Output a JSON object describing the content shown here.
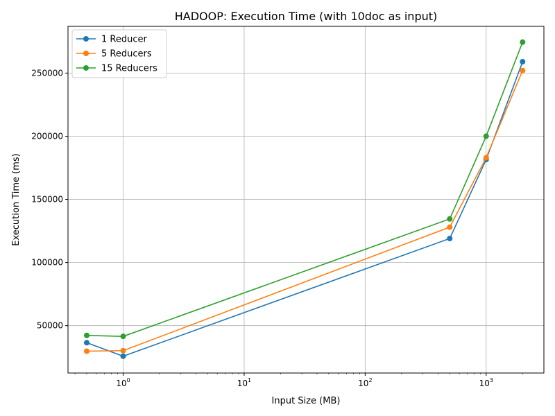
{
  "chart_data": {
    "type": "line",
    "title": "HADOOP: Execution Time (with 10doc as input)",
    "xlabel": "Input Size (MB)",
    "ylabel": "Execution Time (ms)",
    "xscale": "log",
    "xlim": [
      0.35,
      3000
    ],
    "ylim": [
      12500,
      287000
    ],
    "x": [
      0.5,
      1,
      500,
      1000,
      2000
    ],
    "x_ticks": [
      {
        "value": 1,
        "base": "10",
        "exp": "0"
      },
      {
        "value": 10,
        "base": "10",
        "exp": "1"
      },
      {
        "value": 100,
        "base": "10",
        "exp": "2"
      },
      {
        "value": 1000,
        "base": "10",
        "exp": "3"
      }
    ],
    "y_ticks": [
      50000,
      100000,
      150000,
      200000,
      250000
    ],
    "y_tick_labels": [
      "50000",
      "100000",
      "150000",
      "200000",
      "250000"
    ],
    "grid": true,
    "legend_position": "top-left",
    "series": [
      {
        "name": "1 Reducer",
        "color": "#1f77b4",
        "values": [
          36500,
          25800,
          119000,
          181500,
          259000
        ]
      },
      {
        "name": "5 Reducers",
        "color": "#ff7f0e",
        "values": [
          29800,
          30200,
          128000,
          183000,
          252000
        ]
      },
      {
        "name": "15 Reducers",
        "color": "#2ca02c",
        "values": [
          42300,
          41500,
          134500,
          200000,
          274500
        ]
      }
    ]
  }
}
